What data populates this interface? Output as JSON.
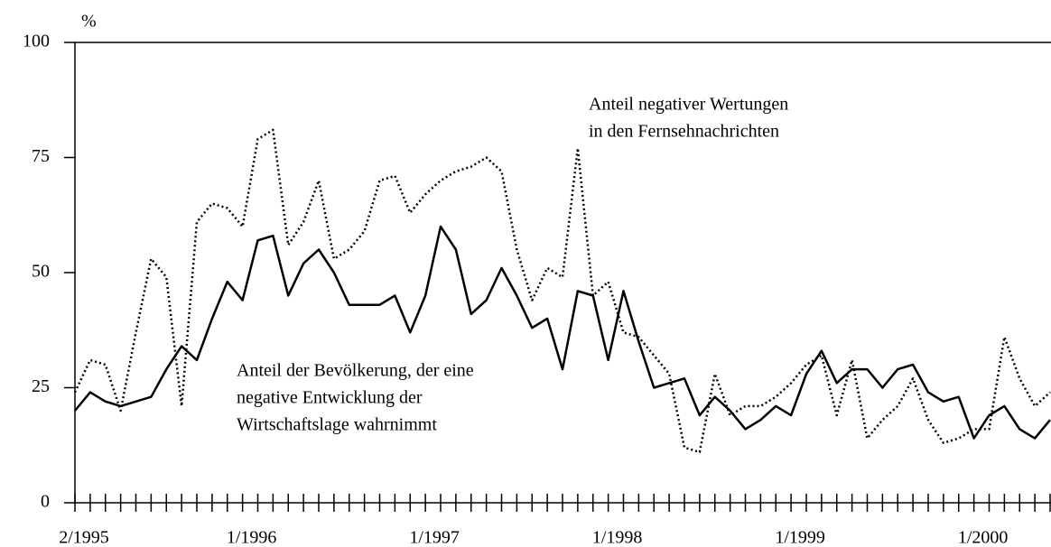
{
  "chart_data": {
    "type": "line",
    "y_label": "%",
    "categories": [
      "2/1995",
      null,
      null,
      null,
      null,
      null,
      null,
      null,
      null,
      null,
      null,
      "1/1996",
      null,
      null,
      null,
      null,
      null,
      null,
      null,
      null,
      null,
      null,
      null,
      "1/1997",
      null,
      null,
      null,
      null,
      null,
      null,
      null,
      null,
      null,
      null,
      null,
      "1/1998",
      null,
      null,
      null,
      null,
      null,
      null,
      null,
      null,
      null,
      null,
      null,
      "1/1999",
      null,
      null,
      null,
      null,
      null,
      null,
      null,
      null,
      null,
      null,
      null,
      "1/2000",
      null,
      null,
      null,
      null,
      null
    ],
    "series": [
      {
        "color": "#000000",
        "style": "solid",
        "values": [
          20,
          24,
          22,
          21,
          22,
          23,
          29,
          34,
          31,
          40,
          48,
          44,
          57,
          58,
          45,
          52,
          55,
          50,
          43,
          43,
          43,
          45,
          37,
          45,
          60,
          55,
          41,
          44,
          51,
          45,
          38,
          40,
          29,
          46,
          45,
          31,
          46,
          35,
          25,
          26,
          27,
          19,
          23,
          20,
          16,
          18,
          21,
          19,
          28,
          33,
          26,
          29,
          29,
          25,
          29,
          30,
          24,
          22,
          23,
          14,
          19,
          21,
          16,
          14,
          18
        ]
      },
      {
        "color": "#000000",
        "style": "dotted",
        "values": [
          24,
          31,
          30,
          20,
          37,
          53,
          49,
          21,
          61,
          65,
          64,
          60,
          79,
          81,
          56,
          61,
          70,
          53,
          55,
          59,
          70,
          71,
          63,
          67,
          70,
          72,
          73,
          75,
          72,
          55,
          44,
          51,
          49,
          77,
          45,
          48,
          37,
          36,
          32,
          28,
          12,
          11,
          28,
          19,
          21,
          21,
          23,
          26,
          30,
          32,
          19,
          31,
          14,
          18,
          21,
          27,
          18,
          13,
          14,
          16,
          16,
          36,
          27,
          21,
          24
        ]
      }
    ],
    "annotations": [
      {
        "lines": [
          "Anteil negativer Wertungen",
          "in den Fernsehnachrichten"
        ]
      },
      {
        "lines": [
          "Anteil der Bevölkerung, der eine",
          "negative Entwicklung der",
          "Wirtschaftslage wahrnimmt"
        ]
      }
    ],
    "ylim": [
      0,
      100
    ],
    "yticks": [
      0,
      25,
      50,
      75,
      100
    ]
  }
}
